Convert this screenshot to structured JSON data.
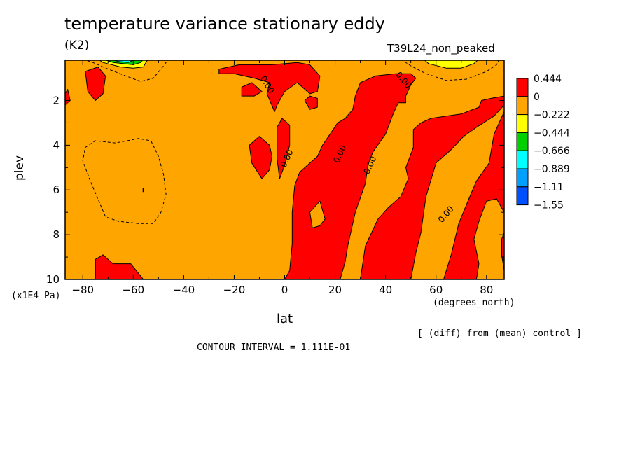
{
  "header": {
    "title": "temperature variance stationary eddy",
    "units": "(K2)",
    "run": "T39L24_non_peaked"
  },
  "footer": {
    "note": "[ (diff) from (mean) control ]",
    "contour_interval": "CONTOUR INTERVAL = 1.111E-01"
  },
  "chart_data": {
    "type": "heatmap",
    "title": "temperature variance stationary eddy",
    "xlabel": "lat",
    "x_units": "(degrees_north)",
    "ylabel": "plev",
    "y_units": "(x1E4 Pa)",
    "xlim": [
      -87,
      87
    ],
    "ylim": [
      10,
      0.2
    ],
    "x_ticks": [
      -80,
      -60,
      -40,
      -20,
      0,
      20,
      40,
      60,
      80
    ],
    "x_tick_labels": [
      "−80",
      "−60",
      "−40",
      "−20",
      "0",
      "20",
      "40",
      "60",
      "80"
    ],
    "y_ticks": [
      2,
      4,
      6,
      8,
      10
    ],
    "y_tick_labels": [
      "2",
      "4",
      "6",
      "8",
      "10"
    ],
    "colorbar": {
      "labels": [
        "0.444",
        "0",
        "−0.222",
        "−0.444",
        "−0.666",
        "−0.889",
        "−1.11",
        "−1.55"
      ],
      "colors": [
        "#ff0000",
        "#ffa500",
        "#ffff00",
        "#00d000",
        "#00ffff",
        "#00a0ff",
        "#0050ff"
      ]
    },
    "contour_labels": [
      {
        "text": "0.00",
        "x": -7,
        "y": 1.3,
        "rot": 60
      },
      {
        "text": "0.00",
        "x": 1,
        "y": 4.6,
        "rot": -65
      },
      {
        "text": "0.00",
        "x": 22,
        "y": 4.4,
        "rot": -65
      },
      {
        "text": "0.00",
        "x": 34,
        "y": 4.9,
        "rot": -65
      },
      {
        "text": "0.00",
        "x": 47,
        "y": 1.1,
        "rot": 50
      },
      {
        "text": "0.00",
        "x": 64,
        "y": 7.1,
        "rot": -50
      }
    ],
    "regions": [
      {
        "level": "0 to 0.444",
        "color": "#ff0000",
        "points": [
          [
            -79,
            0.7
          ],
          [
            -74,
            0.5
          ],
          [
            -71,
            0.9
          ],
          [
            -72,
            1.7
          ],
          [
            -75,
            2.0
          ],
          [
            -78,
            1.6
          ]
        ]
      },
      {
        "level": "0 to 0.444",
        "color": "#ff0000",
        "points": [
          [
            -87,
            1.7
          ],
          [
            -86,
            1.5
          ],
          [
            -85,
            2.0
          ],
          [
            -87,
            2.2
          ]
        ]
      },
      {
        "level": "0 to 0.444",
        "color": "#ff0000",
        "points": [
          [
            -75,
            10
          ],
          [
            -75,
            9.1
          ],
          [
            -72,
            8.9
          ],
          [
            -68,
            9.3
          ],
          [
            -61,
            9.3
          ],
          [
            -56,
            10
          ]
        ]
      },
      {
        "level": "0 to 0.444",
        "color": "#ff0000",
        "points": [
          [
            -26,
            0.6
          ],
          [
            -18,
            0.4
          ],
          [
            -5,
            0.4
          ],
          [
            5,
            0.3
          ],
          [
            10,
            0.4
          ],
          [
            14,
            0.9
          ],
          [
            13,
            1.6
          ],
          [
            10,
            1.7
          ],
          [
            5,
            1.2
          ],
          [
            0,
            1.6
          ],
          [
            -3,
            2.2
          ],
          [
            -4,
            2.5
          ],
          [
            -7,
            1.7
          ],
          [
            -6,
            1.2
          ],
          [
            -12,
            1.0
          ],
          [
            -20,
            0.8
          ],
          [
            -26,
            0.8
          ]
        ]
      },
      {
        "level": "0 to 0.444",
        "color": "#ff0000",
        "points": [
          [
            -17,
            1.4
          ],
          [
            -13,
            1.2
          ],
          [
            -9,
            1.6
          ],
          [
            -12,
            1.8
          ],
          [
            -17,
            1.8
          ]
        ]
      },
      {
        "level": "0 to 0.444",
        "color": "#ff0000",
        "points": [
          [
            -14,
            4.0
          ],
          [
            -10,
            3.6
          ],
          [
            -6,
            4.0
          ],
          [
            -5,
            4.5
          ],
          [
            -6,
            5.1
          ],
          [
            -9,
            5.5
          ],
          [
            -13,
            4.8
          ]
        ]
      },
      {
        "level": "0 to 0.444",
        "color": "#ff0000",
        "points": [
          [
            -3,
            3.2
          ],
          [
            -1,
            2.8
          ],
          [
            2,
            3.1
          ],
          [
            2,
            4.0
          ],
          [
            0,
            4.9
          ],
          [
            -2,
            5.5
          ],
          [
            -3,
            4.6
          ]
        ]
      },
      {
        "level": "0 to 0.444",
        "color": "#ff0000",
        "points": [
          [
            0,
            10
          ],
          [
            2,
            9.6
          ],
          [
            3,
            8.4
          ],
          [
            3,
            7.0
          ],
          [
            4,
            5.8
          ],
          [
            6,
            5.2
          ],
          [
            10,
            4.8
          ],
          [
            13,
            4.5
          ],
          [
            15,
            4.0
          ],
          [
            18,
            3.5
          ],
          [
            21,
            3.0
          ],
          [
            24,
            2.8
          ],
          [
            27,
            2.4
          ],
          [
            28,
            1.8
          ],
          [
            30,
            1.2
          ],
          [
            36,
            0.9
          ],
          [
            44,
            0.8
          ],
          [
            50,
            0.8
          ],
          [
            52,
            1.0
          ],
          [
            50,
            1.3
          ],
          [
            48,
            1.8
          ],
          [
            48,
            2.1
          ],
          [
            45,
            2.1
          ],
          [
            43,
            2.6
          ],
          [
            40,
            3.5
          ],
          [
            35,
            4.3
          ],
          [
            33,
            4.9
          ],
          [
            32,
            5.7
          ],
          [
            28,
            7.0
          ],
          [
            25,
            8.5
          ],
          [
            24,
            9.2
          ],
          [
            22,
            10
          ]
        ]
      },
      {
        "level": "0 to 0.444",
        "color": "#ff0000",
        "points": [
          [
            13,
            1.9
          ],
          [
            10,
            1.8
          ],
          [
            8,
            2.0
          ],
          [
            10,
            2.4
          ],
          [
            13,
            2.3
          ]
        ]
      },
      {
        "level": "0 to 0.444",
        "color": "#ff0000",
        "points": [
          [
            30,
            10
          ],
          [
            32,
            8.5
          ],
          [
            37,
            7.3
          ],
          [
            41,
            6.8
          ],
          [
            46,
            6.3
          ],
          [
            49,
            5.5
          ],
          [
            48,
            5.0
          ],
          [
            51,
            4.1
          ],
          [
            51,
            3.3
          ],
          [
            54,
            3.0
          ],
          [
            58,
            2.8
          ],
          [
            64,
            2.7
          ],
          [
            70,
            2.6
          ],
          [
            77,
            2.3
          ],
          [
            78,
            2.0
          ],
          [
            82,
            1.9
          ],
          [
            87,
            1.8
          ],
          [
            87,
            2.2
          ],
          [
            83,
            2.7
          ],
          [
            76,
            3.2
          ],
          [
            71,
            3.6
          ],
          [
            66,
            4.2
          ],
          [
            60,
            4.8
          ],
          [
            56,
            6.3
          ],
          [
            54,
            7.9
          ],
          [
            52,
            8.8
          ],
          [
            51,
            9.4
          ],
          [
            50,
            10
          ]
        ]
      },
      {
        "level": "0 to 0.444",
        "color": "#ff0000",
        "points": [
          [
            87,
            2.5
          ],
          [
            83,
            3.5
          ],
          [
            81,
            4.8
          ],
          [
            76,
            5.6
          ],
          [
            73,
            6.4
          ],
          [
            69,
            7.5
          ],
          [
            66,
            8.9
          ],
          [
            63,
            10
          ],
          [
            76,
            10
          ],
          [
            77,
            9.3
          ],
          [
            75,
            8.2
          ],
          [
            77,
            7.4
          ],
          [
            80,
            6.5
          ],
          [
            84,
            6.4
          ],
          [
            87,
            7.0
          ]
        ]
      },
      {
        "level": "0 to 0.444",
        "color": "#ff0000",
        "points": [
          [
            87,
            9.6
          ],
          [
            86,
            8.9
          ],
          [
            86,
            8.2
          ],
          [
            87,
            7.9
          ]
        ]
      },
      {
        "level": "−0.222 to 0",
        "color": "#ffa500",
        "points": [
          [
            10,
            7.0
          ],
          [
            14,
            6.5
          ],
          [
            16,
            7.3
          ],
          [
            14,
            7.6
          ],
          [
            11,
            7.7
          ]
        ]
      },
      {
        "level": "−0.444 to −0.222",
        "color": "#ffff00",
        "points": [
          [
            -74,
            0.15
          ],
          [
            -72,
            0.3
          ],
          [
            -65,
            0.5
          ],
          [
            -60,
            0.55
          ],
          [
            -56,
            0.5
          ],
          [
            -55,
            0.3
          ],
          [
            -54,
            0.15
          ]
        ]
      },
      {
        "level": "−0.444 to −0.222",
        "color": "#ffff00",
        "points": [
          [
            55,
            0.15
          ],
          [
            57,
            0.35
          ],
          [
            64,
            0.55
          ],
          [
            70,
            0.55
          ],
          [
            75,
            0.35
          ],
          [
            77,
            0.15
          ]
        ]
      },
      {
        "level": "−0.666 to −0.444",
        "color": "#00d000",
        "points": [
          [
            -72,
            0.15
          ],
          [
            -68,
            0.3
          ],
          [
            -60,
            0.4
          ],
          [
            -57,
            0.3
          ],
          [
            -56,
            0.15
          ]
        ]
      },
      {
        "level": "−0.889 to −0.666",
        "color": "#00ffff",
        "points": [
          [
            -69,
            0.15
          ],
          [
            -66,
            0.25
          ],
          [
            -62,
            0.3
          ],
          [
            -59,
            0.15
          ]
        ]
      },
      {
        "level": "−1.11 to −0.889",
        "color": "#00a0ff",
        "points": [
          [
            -65,
            0.15
          ],
          [
            -63,
            0.2
          ],
          [
            -61,
            0.15
          ]
        ]
      }
    ],
    "dashed_contours": [
      {
        "level": "−0.111",
        "points": [
          [
            -80,
            0.15
          ],
          [
            -76,
            0.3
          ],
          [
            -72,
            0.5
          ],
          [
            -63,
            0.9
          ],
          [
            -57,
            1.15
          ],
          [
            -52,
            1.0
          ],
          [
            -48,
            0.45
          ],
          [
            -46,
            0.15
          ]
        ]
      },
      {
        "level": "−0.111",
        "points": [
          [
            46,
            0.15
          ],
          [
            50,
            0.45
          ],
          [
            56,
            0.8
          ],
          [
            64,
            1.1
          ],
          [
            72,
            1.05
          ],
          [
            80,
            0.7
          ],
          [
            84,
            0.4
          ],
          [
            85,
            0.15
          ]
        ]
      },
      {
        "level": "−0.111",
        "points": [
          [
            -79,
            4.1
          ],
          [
            -75,
            3.8
          ],
          [
            -67,
            3.9
          ],
          [
            -58,
            3.7
          ],
          [
            -53,
            3.8
          ],
          [
            -50,
            4.5
          ],
          [
            -48,
            5.3
          ],
          [
            -47,
            6.2
          ],
          [
            -49,
            7.0
          ],
          [
            -52,
            7.5
          ],
          [
            -58,
            7.5
          ],
          [
            -66,
            7.4
          ],
          [
            -71,
            7.2
          ],
          [
            -74,
            6.4
          ],
          [
            -77,
            5.6
          ],
          [
            -80,
            4.7
          ]
        ]
      }
    ]
  }
}
